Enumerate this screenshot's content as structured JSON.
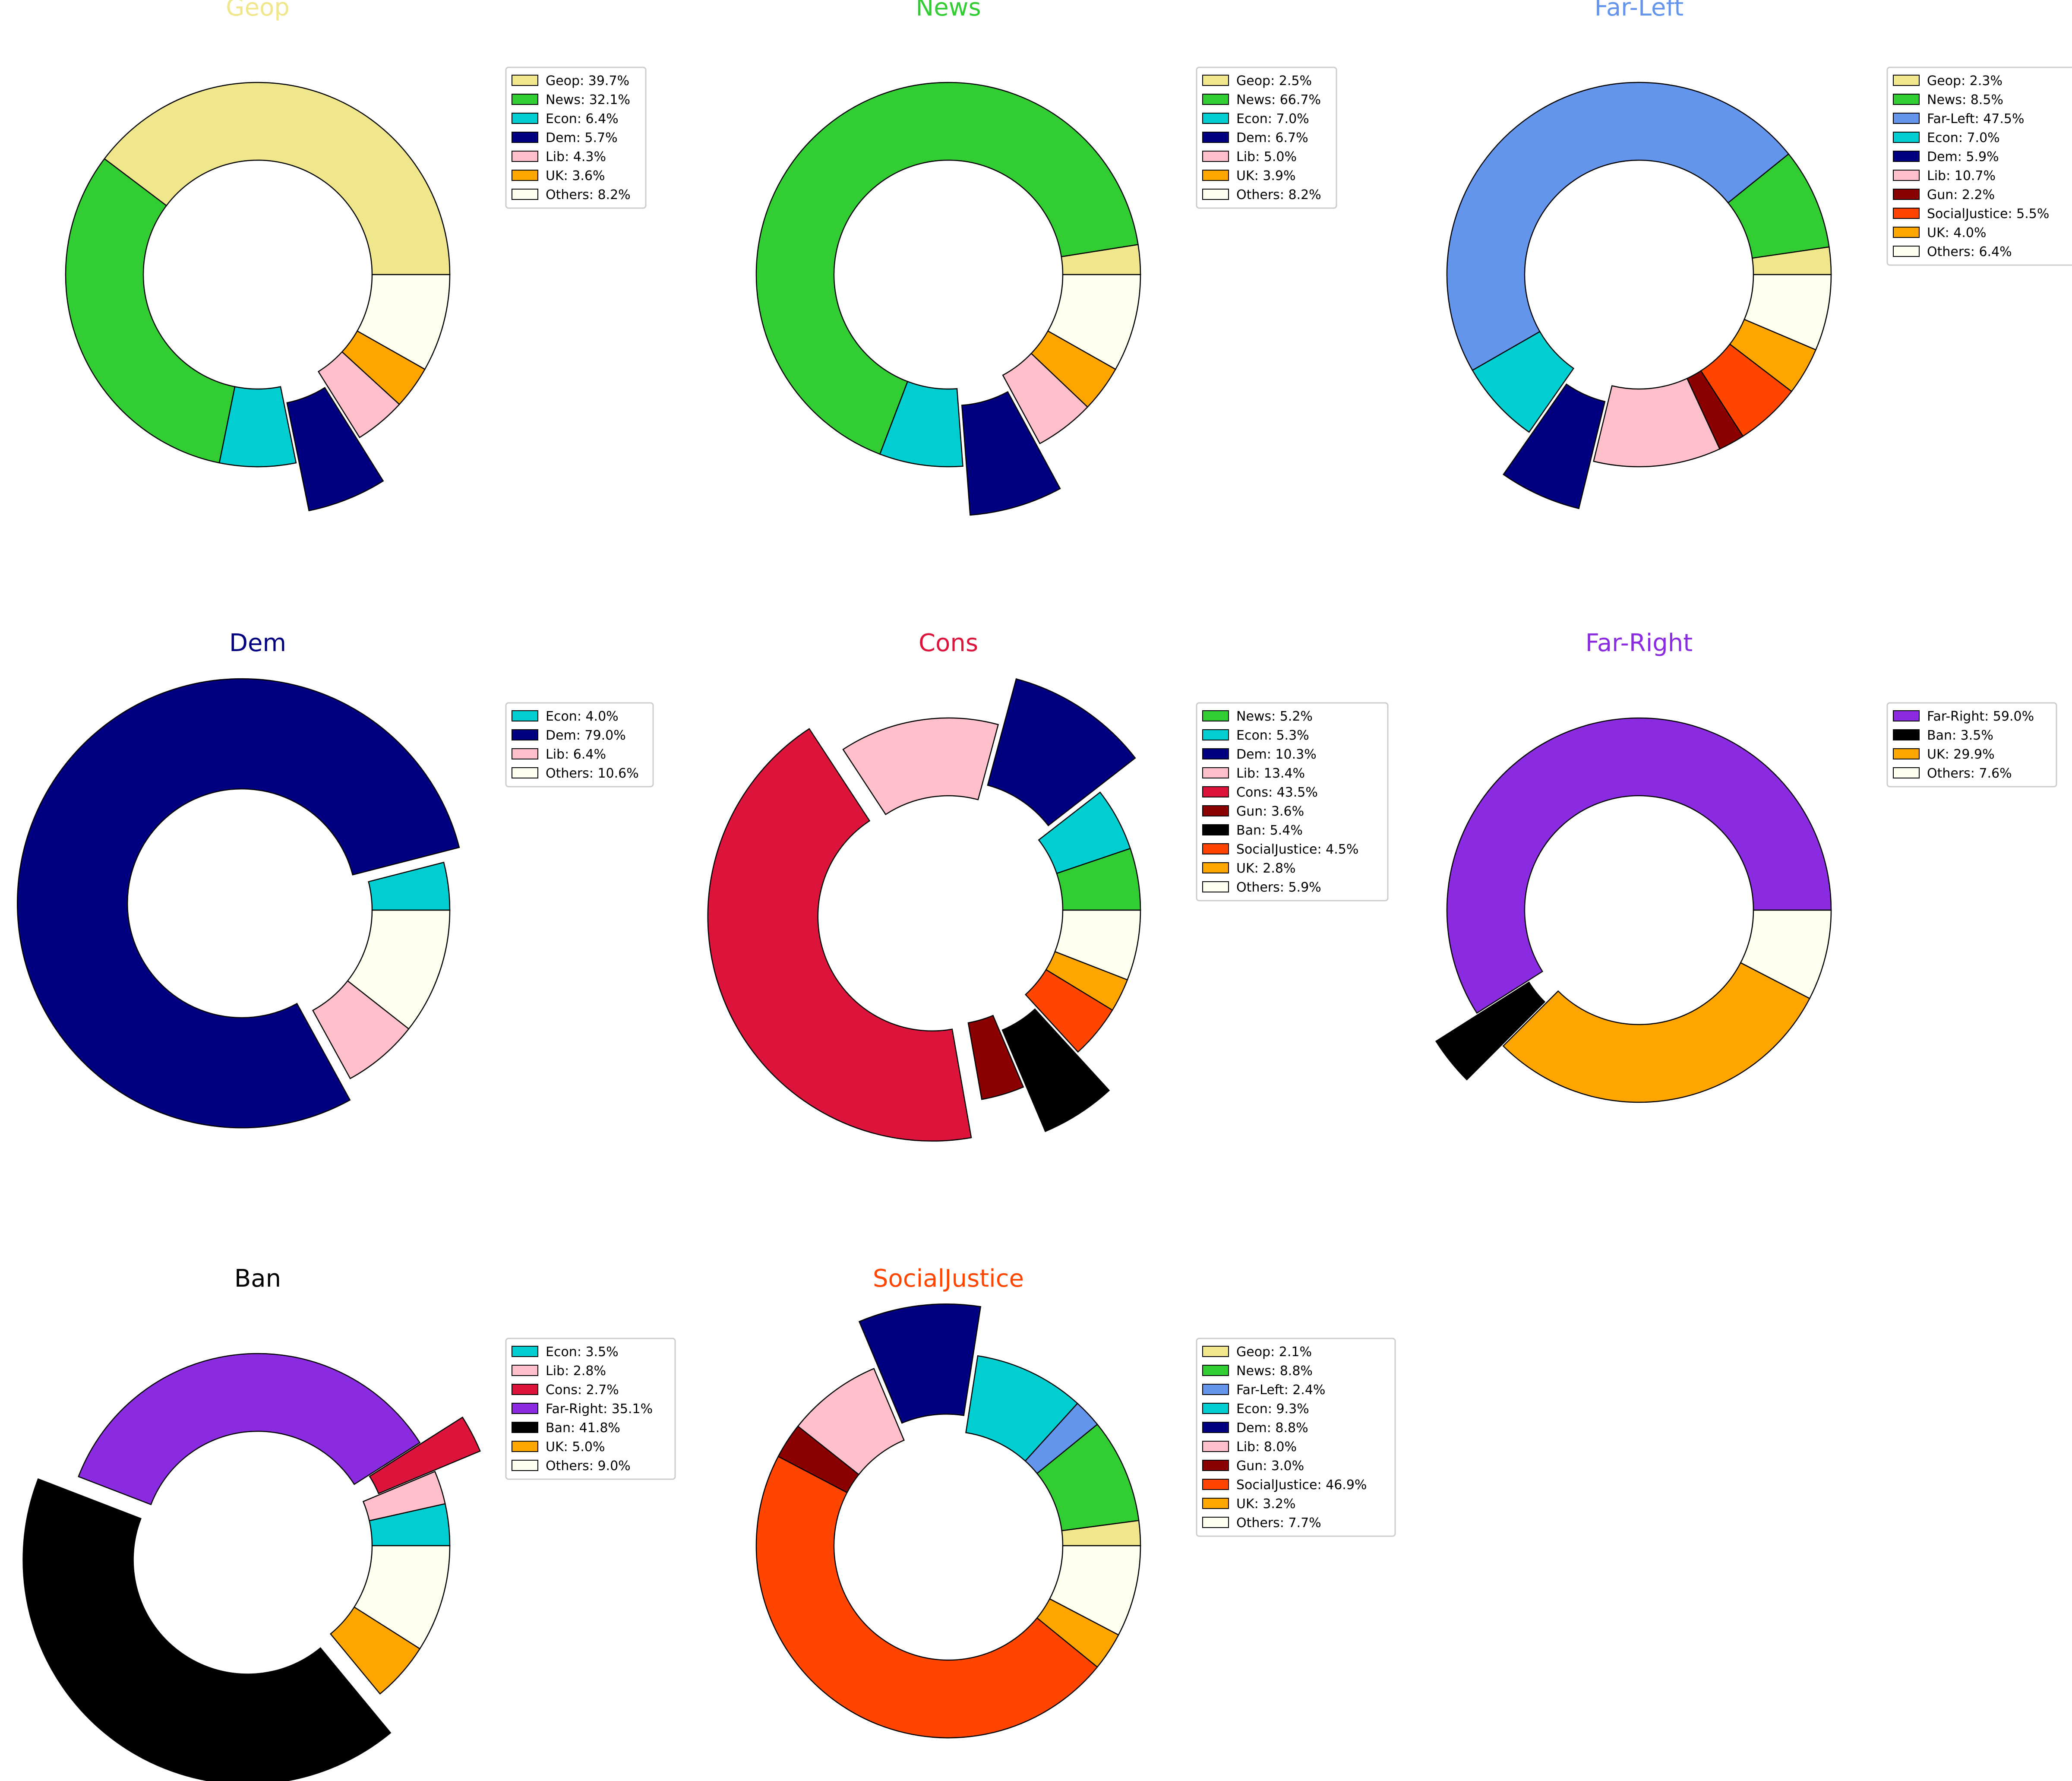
{
  "colors": {
    "Geop": "#f0e68c",
    "News": "#32cd32",
    "Far-Left": "#6495ed",
    "Econ": "#00ced1",
    "Dem": "#000080",
    "Lib": "#ffc0cb",
    "Cons": "#dc143c",
    "Gun": "#8b0000",
    "Far-Right": "#8a2be2",
    "Ban": "#000000",
    "SocialJustice": "#ff4500",
    "UK": "#ffa500",
    "Others": "#fffff0"
  },
  "chart_data": [
    {
      "type": "pie",
      "style": "donut",
      "title": "Geop",
      "title_color": "#f0e68c",
      "explode": [
        "Dem"
      ],
      "slices": [
        {
          "label": "Geop",
          "value": 39.7,
          "legend": "Geop: 39.7%"
        },
        {
          "label": "News",
          "value": 32.1,
          "legend": "News: 32.1%"
        },
        {
          "label": "Econ",
          "value": 6.4,
          "legend": "Econ: 6.4%"
        },
        {
          "label": "Dem",
          "value": 5.7,
          "legend": "Dem: 5.7%"
        },
        {
          "label": "Lib",
          "value": 4.3,
          "legend": "Lib: 4.3%"
        },
        {
          "label": "UK",
          "value": 3.6,
          "legend": "UK: 3.6%"
        },
        {
          "label": "Others",
          "value": 8.2,
          "legend": "Others: 8.2%"
        }
      ]
    },
    {
      "type": "pie",
      "style": "donut",
      "title": "News",
      "title_color": "#32cd32",
      "explode": [
        "Dem"
      ],
      "slices": [
        {
          "label": "Geop",
          "value": 2.5,
          "legend": "Geop: 2.5%"
        },
        {
          "label": "News",
          "value": 66.7,
          "legend": "News: 66.7%"
        },
        {
          "label": "Econ",
          "value": 7.0,
          "legend": "Econ: 7.0%"
        },
        {
          "label": "Dem",
          "value": 6.7,
          "legend": "Dem: 6.7%"
        },
        {
          "label": "Lib",
          "value": 5.0,
          "legend": "Lib: 5.0%"
        },
        {
          "label": "UK",
          "value": 3.9,
          "legend": "UK: 3.9%"
        },
        {
          "label": "Others",
          "value": 8.2,
          "legend": "Others: 8.2%"
        }
      ]
    },
    {
      "type": "pie",
      "style": "donut",
      "title": "Far-Left",
      "title_color": "#6495ed",
      "explode": [
        "Dem"
      ],
      "slices": [
        {
          "label": "Geop",
          "value": 2.3,
          "legend": "Geop: 2.3%"
        },
        {
          "label": "News",
          "value": 8.5,
          "legend": "News: 8.5%"
        },
        {
          "label": "Far-Left",
          "value": 47.5,
          "legend": "Far-Left: 47.5%"
        },
        {
          "label": "Econ",
          "value": 7.0,
          "legend": "Econ: 7.0%"
        },
        {
          "label": "Dem",
          "value": 5.9,
          "legend": "Dem: 5.9%"
        },
        {
          "label": "Lib",
          "value": 10.7,
          "legend": "Lib: 10.7%"
        },
        {
          "label": "Gun",
          "value": 2.2,
          "legend": "Gun: 2.2%"
        },
        {
          "label": "SocialJustice",
          "value": 5.5,
          "legend": "SocialJustice: 5.5%"
        },
        {
          "label": "UK",
          "value": 4.0,
          "legend": "UK: 4.0%"
        },
        {
          "label": "Others",
          "value": 6.4,
          "legend": "Others: 6.4%"
        }
      ]
    },
    {
      "type": "pie",
      "style": "donut",
      "title": "Dem",
      "title_color": "#000080",
      "explode": [
        "Dem"
      ],
      "slices": [
        {
          "label": "Econ",
          "value": 4.0,
          "legend": "Econ: 4.0%"
        },
        {
          "label": "Dem",
          "value": 79.0,
          "legend": "Dem: 79.0%"
        },
        {
          "label": "Lib",
          "value": 6.4,
          "legend": "Lib: 6.4%"
        },
        {
          "label": "Others",
          "value": 10.6,
          "legend": "Others: 10.6%"
        }
      ]
    },
    {
      "type": "pie",
      "style": "donut",
      "title": "Cons",
      "title_color": "#dc143c",
      "explode": [
        "Dem",
        "Cons",
        "Ban"
      ],
      "slices": [
        {
          "label": "News",
          "value": 5.2,
          "legend": "News: 5.2%"
        },
        {
          "label": "Econ",
          "value": 5.3,
          "legend": "Econ: 5.3%"
        },
        {
          "label": "Dem",
          "value": 10.3,
          "legend": "Dem: 10.3%"
        },
        {
          "label": "Lib",
          "value": 13.4,
          "legend": "Lib: 13.4%"
        },
        {
          "label": "Cons",
          "value": 43.5,
          "legend": "Cons: 43.5%"
        },
        {
          "label": "Gun",
          "value": 3.6,
          "legend": "Gun: 3.6%"
        },
        {
          "label": "Ban",
          "value": 5.4,
          "legend": "Ban: 5.4%"
        },
        {
          "label": "SocialJustice",
          "value": 4.5,
          "legend": "SocialJustice: 4.5%"
        },
        {
          "label": "UK",
          "value": 2.8,
          "legend": "UK: 2.8%"
        },
        {
          "label": "Others",
          "value": 5.9,
          "legend": "Others: 5.9%"
        }
      ]
    },
    {
      "type": "pie",
      "style": "donut",
      "title": "Far-Right",
      "title_color": "#8a2be2",
      "explode": [
        "Ban"
      ],
      "slices": [
        {
          "label": "Far-Right",
          "value": 59.0,
          "legend": "Far-Right: 59.0%"
        },
        {
          "label": "Ban",
          "value": 3.5,
          "legend": "Ban: 3.5%"
        },
        {
          "label": "UK",
          "value": 29.9,
          "legend": "UK: 29.9%"
        },
        {
          "label": "Others",
          "value": 7.6,
          "legend": "Others: 7.6%"
        }
      ]
    },
    {
      "type": "pie",
      "style": "donut",
      "title": "Ban",
      "title_color": "#000000",
      "explode": [
        "Cons",
        "Ban"
      ],
      "slices": [
        {
          "label": "Econ",
          "value": 3.5,
          "legend": "Econ: 3.5%"
        },
        {
          "label": "Lib",
          "value": 2.8,
          "legend": "Lib: 2.8%"
        },
        {
          "label": "Cons",
          "value": 2.7,
          "legend": "Cons: 2.7%"
        },
        {
          "label": "Far-Right",
          "value": 35.1,
          "legend": "Far-Right: 35.1%"
        },
        {
          "label": "Ban",
          "value": 41.8,
          "legend": "Ban: 41.8%"
        },
        {
          "label": "UK",
          "value": 5.0,
          "legend": "UK: 5.0%"
        },
        {
          "label": "Others",
          "value": 9.0,
          "legend": "Others: 9.0%"
        }
      ]
    },
    {
      "type": "pie",
      "style": "donut",
      "title": "SocialJustice",
      "title_color": "#ff4500",
      "explode": [
        "Dem"
      ],
      "slices": [
        {
          "label": "Geop",
          "value": 2.1,
          "legend": "Geop: 2.1%"
        },
        {
          "label": "News",
          "value": 8.8,
          "legend": "News: 8.8%"
        },
        {
          "label": "Far-Left",
          "value": 2.4,
          "legend": "Far-Left: 2.4%"
        },
        {
          "label": "Econ",
          "value": 9.3,
          "legend": "Econ: 9.3%"
        },
        {
          "label": "Dem",
          "value": 8.8,
          "legend": "Dem: 8.8%"
        },
        {
          "label": "Lib",
          "value": 8.0,
          "legend": "Lib: 8.0%"
        },
        {
          "label": "Gun",
          "value": 3.0,
          "legend": "Gun: 3.0%"
        },
        {
          "label": "SocialJustice",
          "value": 46.9,
          "legend": "SocialJustice: 46.9%"
        },
        {
          "label": "UK",
          "value": 3.2,
          "legend": "UK: 3.2%"
        },
        {
          "label": "Others",
          "value": 7.7,
          "legend": "Others: 7.7%"
        }
      ]
    }
  ]
}
